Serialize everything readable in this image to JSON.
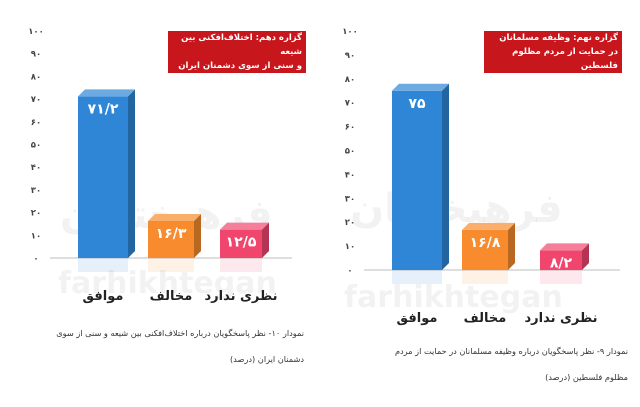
{
  "watermark": {
    "arabic": "فرهیختگان",
    "latin": "farhikhtegan"
  },
  "charts": [
    {
      "title_lines": [
        "گزاره دهم: اختلاف‌افکنی بین شیعه",
        "و سنی از سوی دشمنان ایران"
      ],
      "caption_lines": [
        "نمودار ۱۰- نظر پاسخگویان درباره اختلاف‌افکنی بین شیعه و سنی از سوی",
        "دشمنان ایران (درصد)"
      ]
    },
    {
      "title_lines": [
        "گزاره نهم: وظیفه مسلمانان",
        "در حمایت از مردم مظلوم فلسطین"
      ],
      "caption_lines": [
        "نمودار ۹- نظر پاسخگویان درباره وظیفه مسلمانان در حمایت از مردم",
        "مظلوم فلسطین (درصد)"
      ]
    }
  ],
  "chart_data": [
    {
      "type": "bar",
      "title": "گزاره دهم: اختلاف‌افکنی بین شیعه و سنی از سوی دشمنان ایران",
      "categories": [
        "موافق",
        "مخالف",
        "نظری ندارد"
      ],
      "values": [
        71.2,
        16.3,
        12.5
      ],
      "value_labels": [
        "۷۱/۲",
        "۱۶/۳",
        "۱۲/۵"
      ],
      "colors": [
        "#2f86d6",
        "#f78b2d",
        "#f0466e"
      ],
      "ylim": [
        0,
        100
      ],
      "yticks": [
        0,
        10,
        20,
        30,
        40,
        50,
        60,
        70,
        80,
        90,
        100
      ],
      "ytick_labels": [
        "۰",
        "۱۰",
        "۲۰",
        "۳۰",
        "۴۰",
        "۵۰",
        "۶۰",
        "۷۰",
        "۸۰",
        "۹۰",
        "۱۰۰"
      ],
      "grid": false,
      "legend": "none"
    },
    {
      "type": "bar",
      "title": "گزاره نهم: وظیفه مسلمانان در حمایت از مردم مظلوم فلسطین",
      "categories": [
        "موافق",
        "مخالف",
        "نظری ندارد"
      ],
      "values": [
        75,
        16.8,
        8.2
      ],
      "value_labels": [
        "۷۵",
        "۱۶/۸",
        "۸/۲"
      ],
      "colors": [
        "#2f86d6",
        "#f78b2d",
        "#f0466e"
      ],
      "ylim": [
        0,
        100
      ],
      "yticks": [
        0,
        10,
        20,
        30,
        40,
        50,
        60,
        70,
        80,
        90,
        100
      ],
      "ytick_labels": [
        "۰",
        "۱۰",
        "۲۰",
        "۳۰",
        "۴۰",
        "۵۰",
        "۶۰",
        "۷۰",
        "۸۰",
        "۹۰",
        "۱۰۰"
      ],
      "grid": false,
      "legend": "none"
    }
  ]
}
